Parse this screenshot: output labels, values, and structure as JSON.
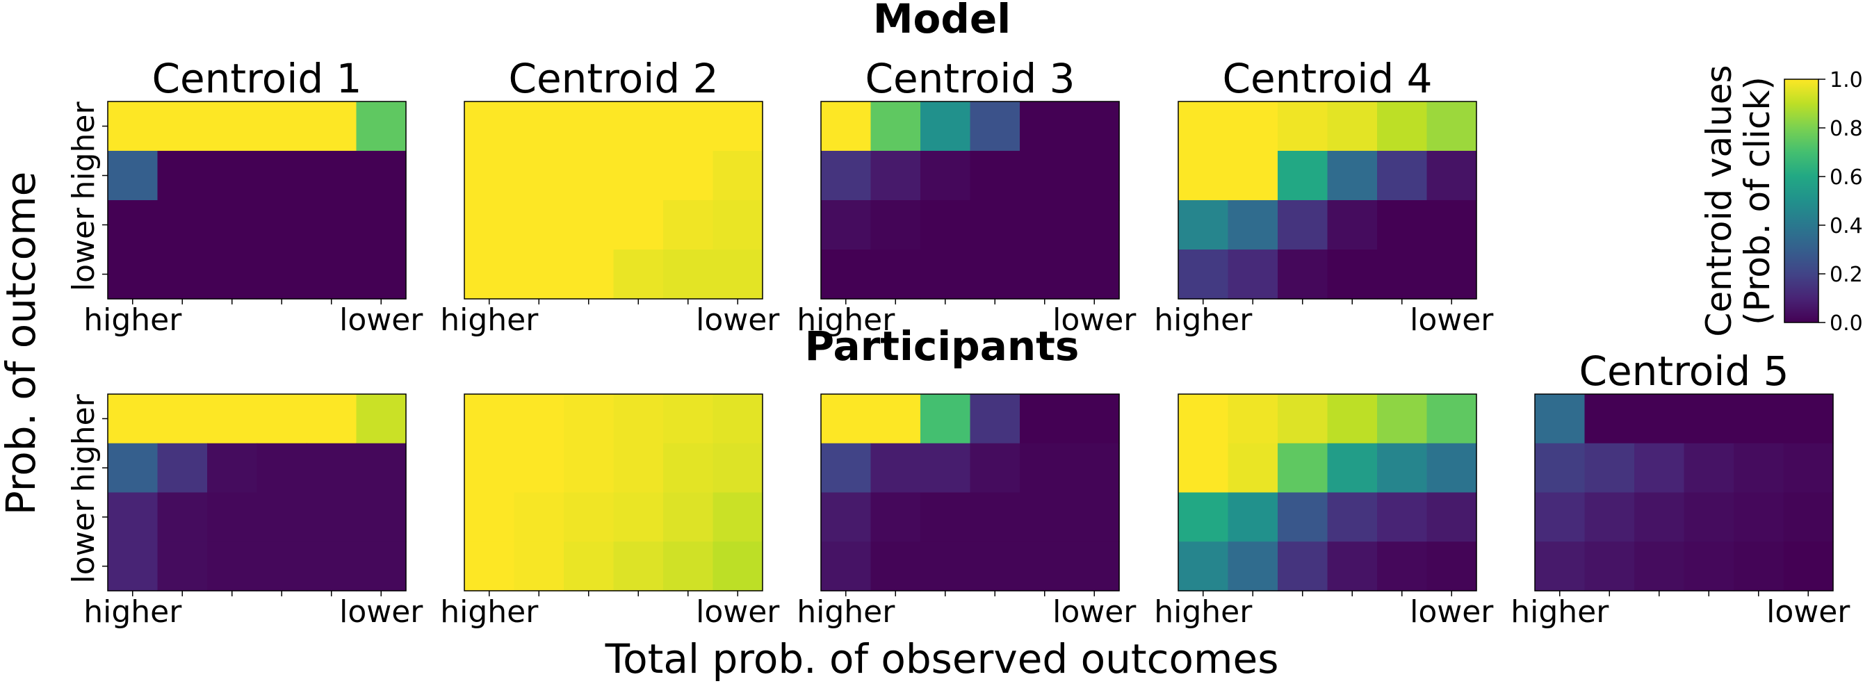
{
  "figure": {
    "row_titles": [
      "Model",
      "Participants"
    ],
    "ylabel": "Prob. of outcome",
    "xlabel": "Total prob. of observed outcomes",
    "y_ticks": [
      "higher",
      "lower"
    ],
    "x_ticks": [
      "higher",
      "lower"
    ]
  },
  "colorbar": {
    "label_line1": "Centroid values",
    "label_line2": "(Prob. of click)",
    "ticks": [
      "0.0",
      "0.2",
      "0.4",
      "0.6",
      "0.8",
      "1.0"
    ],
    "range": [
      0,
      1
    ],
    "colormap": "viridis"
  },
  "chart_data": [
    {
      "type": "heatmap",
      "row": "Model",
      "title": "Centroid 1",
      "values": [
        [
          1.0,
          1.0,
          1.0,
          1.0,
          1.0,
          0.75
        ],
        [
          0.3,
          0.0,
          0.0,
          0.0,
          0.0,
          0.0
        ],
        [
          0.0,
          0.0,
          0.0,
          0.0,
          0.0,
          0.0
        ],
        [
          0.0,
          0.0,
          0.0,
          0.0,
          0.0,
          0.0
        ]
      ]
    },
    {
      "type": "heatmap",
      "row": "Model",
      "title": "Centroid 2",
      "values": [
        [
          1.0,
          1.0,
          1.0,
          1.0,
          1.0,
          1.0
        ],
        [
          1.0,
          1.0,
          1.0,
          1.0,
          1.0,
          0.98
        ],
        [
          1.0,
          1.0,
          1.0,
          1.0,
          0.98,
          0.97
        ],
        [
          1.0,
          1.0,
          1.0,
          0.97,
          0.96,
          0.96
        ]
      ]
    },
    {
      "type": "heatmap",
      "row": "Model",
      "title": "Centroid 3",
      "values": [
        [
          1.0,
          0.75,
          0.5,
          0.25,
          0.0,
          0.0
        ],
        [
          0.15,
          0.07,
          0.02,
          0.0,
          0.0,
          0.0
        ],
        [
          0.03,
          0.01,
          0.0,
          0.0,
          0.0,
          0.0
        ],
        [
          0.0,
          0.0,
          0.0,
          0.0,
          0.0,
          0.0
        ]
      ]
    },
    {
      "type": "heatmap",
      "row": "Model",
      "title": "Centroid 4",
      "values": [
        [
          1.0,
          1.0,
          0.98,
          0.96,
          0.9,
          0.85
        ],
        [
          1.0,
          1.0,
          0.6,
          0.35,
          0.17,
          0.05
        ],
        [
          0.45,
          0.35,
          0.15,
          0.03,
          0.0,
          0.0
        ],
        [
          0.17,
          0.12,
          0.02,
          0.0,
          0.0,
          0.0
        ]
      ]
    },
    {
      "type": "heatmap",
      "row": "Participants",
      "title": "",
      "values": [
        [
          1.0,
          1.0,
          1.0,
          1.0,
          1.0,
          0.92
        ],
        [
          0.3,
          0.15,
          0.03,
          0.02,
          0.02,
          0.02
        ],
        [
          0.1,
          0.03,
          0.02,
          0.02,
          0.02,
          0.02
        ],
        [
          0.1,
          0.03,
          0.02,
          0.02,
          0.02,
          0.02
        ]
      ]
    },
    {
      "type": "heatmap",
      "row": "Participants",
      "title": "",
      "values": [
        [
          1.0,
          1.0,
          0.99,
          0.98,
          0.97,
          0.96
        ],
        [
          1.0,
          1.0,
          0.99,
          0.98,
          0.96,
          0.95
        ],
        [
          1.0,
          0.99,
          0.98,
          0.97,
          0.95,
          0.92
        ],
        [
          1.0,
          0.99,
          0.97,
          0.95,
          0.93,
          0.9
        ]
      ]
    },
    {
      "type": "heatmap",
      "row": "Participants",
      "title": "",
      "values": [
        [
          1.0,
          1.0,
          0.7,
          0.15,
          0.0,
          0.0
        ],
        [
          0.2,
          0.08,
          0.08,
          0.03,
          0.01,
          0.01
        ],
        [
          0.07,
          0.02,
          0.01,
          0.01,
          0.01,
          0.01
        ],
        [
          0.05,
          0.01,
          0.01,
          0.01,
          0.01,
          0.01
        ]
      ]
    },
    {
      "type": "heatmap",
      "row": "Participants",
      "title": "",
      "values": [
        [
          1.0,
          0.98,
          0.95,
          0.9,
          0.83,
          0.75
        ],
        [
          1.0,
          0.97,
          0.75,
          0.55,
          0.45,
          0.38
        ],
        [
          0.6,
          0.5,
          0.27,
          0.15,
          0.1,
          0.07
        ],
        [
          0.45,
          0.35,
          0.15,
          0.05,
          0.02,
          0.01
        ]
      ]
    },
    {
      "type": "heatmap",
      "row": "Participants",
      "title": "Centroid 5",
      "values": [
        [
          0.35,
          0.0,
          0.0,
          0.0,
          0.0,
          0.0
        ],
        [
          0.18,
          0.15,
          0.1,
          0.05,
          0.03,
          0.02
        ],
        [
          0.12,
          0.08,
          0.05,
          0.03,
          0.02,
          0.01
        ],
        [
          0.07,
          0.05,
          0.03,
          0.02,
          0.01,
          0.0
        ]
      ]
    }
  ]
}
